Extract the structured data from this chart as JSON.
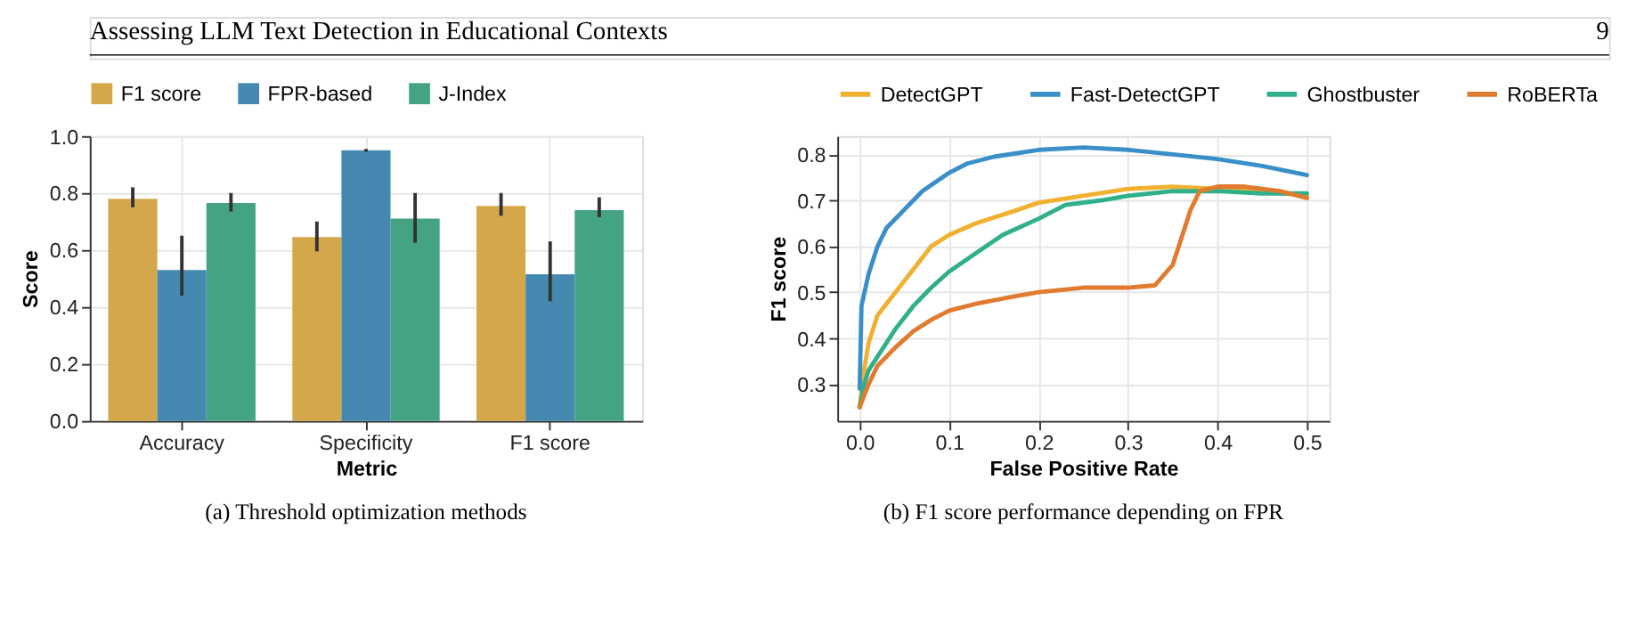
{
  "chart_data": [
    {
      "type": "bar",
      "xlabel": "Metric",
      "ylabel": "Score",
      "categories": [
        "Accuracy",
        "Specificity",
        "F1 score"
      ],
      "series": [
        {
          "name": "F1 score",
          "color": "#d4a84a",
          "values": [
            0.78,
            0.645,
            0.755
          ],
          "errors": [
            [
              0.75,
              0.82
            ],
            [
              0.595,
              0.7
            ],
            [
              0.72,
              0.8
            ]
          ]
        },
        {
          "name": "FPR-based",
          "color": "#4589b0",
          "values": [
            0.53,
            0.95,
            0.515
          ],
          "errors": [
            [
              0.44,
              0.65
            ],
            [
              0.945,
              0.955
            ],
            [
              0.42,
              0.63
            ]
          ]
        },
        {
          "name": "J-Index",
          "color": "#44a385",
          "values": [
            0.765,
            0.71,
            0.74
          ],
          "errors": [
            [
              0.735,
              0.8
            ],
            [
              0.625,
              0.8
            ],
            [
              0.715,
              0.785
            ]
          ]
        }
      ],
      "ylim": [
        0,
        1
      ],
      "yticks": [
        {
          "value": 0,
          "label": "0.0"
        },
        0.2,
        0.4,
        0.6,
        0.8,
        {
          "value": 1,
          "label": "1.0"
        }
      ],
      "grid": true,
      "legend": "top",
      "annotations": [
        "(a) Threshold optimization methods",
        "Assessing LLM Text Detection in Educational Contexts",
        "9"
      ]
    },
    {
      "type": "line",
      "xlabel": "False Positive Rate",
      "ylabel": "F1 score",
      "series": [
        {
          "name": "DetectGPT",
          "color": "#f0b030",
          "x": [
            0,
            0.005,
            0.01,
            0.02,
            0.04,
            0.06,
            0.08,
            0.1,
            0.13,
            0.17,
            0.2,
            0.25,
            0.3,
            0.35,
            0.4,
            0.45,
            0.5
          ],
          "values": [
            0.25,
            0.33,
            0.39,
            0.45,
            0.5,
            0.55,
            0.6,
            0.625,
            0.65,
            0.675,
            0.695,
            0.71,
            0.725,
            0.73,
            0.725,
            0.72,
            0.71
          ]
        },
        {
          "name": "Fast-DetectGPT",
          "color": "#3a8fc8",
          "x": [
            0,
            0.002,
            0.01,
            0.02,
            0.03,
            0.05,
            0.07,
            0.1,
            0.12,
            0.15,
            0.2,
            0.25,
            0.3,
            0.35,
            0.4,
            0.45,
            0.5
          ],
          "values": [
            0.29,
            0.47,
            0.54,
            0.6,
            0.64,
            0.68,
            0.72,
            0.76,
            0.78,
            0.795,
            0.81,
            0.815,
            0.81,
            0.8,
            0.79,
            0.775,
            0.755
          ]
        },
        {
          "name": "Ghostbuster",
          "color": "#30b08a",
          "x": [
            0,
            0.005,
            0.01,
            0.02,
            0.04,
            0.06,
            0.08,
            0.1,
            0.13,
            0.16,
            0.2,
            0.23,
            0.27,
            0.3,
            0.35,
            0.4,
            0.45,
            0.5
          ],
          "values": [
            0.25,
            0.3,
            0.33,
            0.36,
            0.42,
            0.47,
            0.51,
            0.545,
            0.585,
            0.625,
            0.66,
            0.69,
            0.7,
            0.71,
            0.72,
            0.72,
            0.715,
            0.715
          ]
        },
        {
          "name": "RoBERTa",
          "color": "#e07b30",
          "x": [
            0,
            0.01,
            0.02,
            0.04,
            0.06,
            0.08,
            0.1,
            0.13,
            0.17,
            0.2,
            0.25,
            0.3,
            0.33,
            0.35,
            0.36,
            0.37,
            0.38,
            0.4,
            0.43,
            0.47,
            0.5
          ],
          "values": [
            0.25,
            0.3,
            0.34,
            0.38,
            0.415,
            0.44,
            0.46,
            0.475,
            0.49,
            0.5,
            0.51,
            0.51,
            0.515,
            0.56,
            0.62,
            0.68,
            0.72,
            0.73,
            0.73,
            0.72,
            0.705
          ]
        }
      ],
      "xlim": [
        -0.025,
        0.525
      ],
      "xticks": [
        {
          "value": 0,
          "label": "0.0"
        },
        0.1,
        0.2,
        0.3,
        0.4,
        0.5
      ],
      "ylim": [
        0.22,
        0.84
      ],
      "yticks": [
        0.3,
        0.4,
        0.5,
        0.6,
        0.7,
        0.8
      ],
      "grid": true,
      "legend": "top",
      "line_style": "solid",
      "annotations": [
        "(b) F1 score performance depending on FPR"
      ]
    }
  ]
}
